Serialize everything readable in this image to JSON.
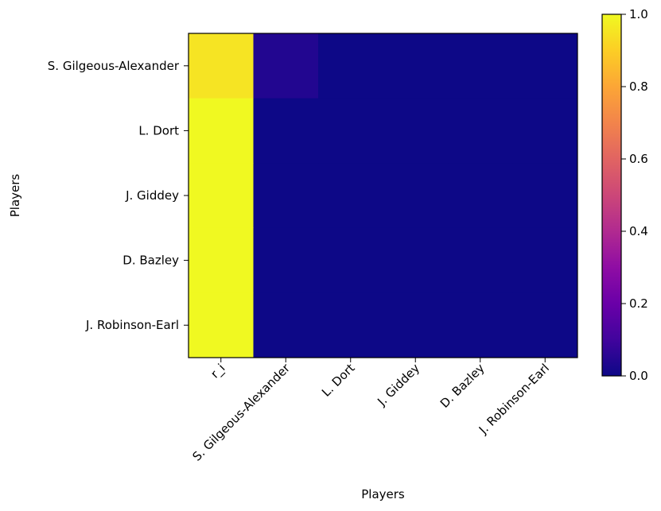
{
  "chart_data": {
    "type": "heatmap",
    "title": "",
    "xlabel": "Players",
    "ylabel": "Players",
    "x_categories": [
      "r_i",
      "S. Gilgeous-Alexander",
      "L. Dort",
      "J. Giddey",
      "D. Bazley",
      "J. Robinson-Earl"
    ],
    "y_categories": [
      "S. Gilgeous-Alexander",
      "L. Dort",
      "J. Giddey",
      "D. Bazley",
      "J. Robinson-Earl"
    ],
    "values": [
      [
        0.95,
        0.04,
        0.0,
        0.0,
        0.0,
        0.0
      ],
      [
        1.0,
        0.0,
        0.0,
        0.0,
        0.0,
        0.0
      ],
      [
        1.0,
        0.0,
        0.0,
        0.0,
        0.0,
        0.0
      ],
      [
        1.0,
        0.0,
        0.0,
        0.0,
        0.0,
        0.0
      ],
      [
        1.0,
        0.0,
        0.0,
        0.0,
        0.0,
        0.0
      ]
    ],
    "colormap": "plasma",
    "colorbar": {
      "range": [
        0.0,
        1.0
      ],
      "ticks": [
        0.0,
        0.2,
        0.4,
        0.6,
        0.8,
        1.0
      ],
      "tick_labels": [
        "0.0",
        "0.2",
        "0.4",
        "0.6",
        "0.8",
        "1.0"
      ]
    },
    "grid": false,
    "x_tick_rotation": "45"
  }
}
